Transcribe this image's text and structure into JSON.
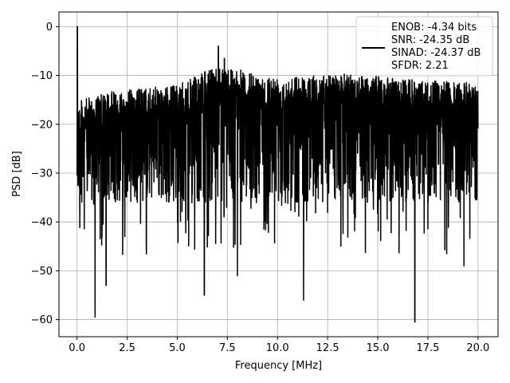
{
  "chart_data": {
    "type": "line",
    "title": "",
    "xlabel": "Frequency [MHz]",
    "ylabel": "PSD [dB]",
    "xlim": [
      -0.9,
      21.0
    ],
    "ylim": [
      -63.5,
      3.0
    ],
    "xticks": [
      0.0,
      2.5,
      5.0,
      7.5,
      10.0,
      12.5,
      15.0,
      17.5,
      20.0
    ],
    "xtick_labels": [
      "0.0",
      "2.5",
      "5.0",
      "7.5",
      "10.0",
      "12.5",
      "15.0",
      "17.5",
      "20.0"
    ],
    "yticks": [
      0,
      -10,
      -20,
      -30,
      -40,
      -50,
      -60
    ],
    "ytick_labels": [
      "0",
      "−10",
      "−20",
      "−30",
      "−40",
      "−50",
      "−60"
    ],
    "grid": true,
    "legend_position": "top-right",
    "legend_lines": [
      "ENOB: -4.34 bits",
      "SNR: -24.35 dB",
      "SINAD: -24.37 dB",
      "SFDR: 2.21"
    ],
    "series": [
      {
        "color": "#000000",
        "x_range": [
          0.0,
          20.0
        ],
        "peaks": [
          {
            "x": 0.02,
            "y": 0.0
          },
          {
            "x": 7.05,
            "y": -4.0
          },
          {
            "x": 7.35,
            "y": -6.5
          }
        ],
        "upper_envelope": [
          {
            "x": 0.2,
            "y": -15
          },
          {
            "x": 2.0,
            "y": -13
          },
          {
            "x": 5.0,
            "y": -12
          },
          {
            "x": 7.0,
            "y": -8
          },
          {
            "x": 7.5,
            "y": -8
          },
          {
            "x": 9.0,
            "y": -10
          },
          {
            "x": 12.0,
            "y": -10
          },
          {
            "x": 14.0,
            "y": -9.5
          },
          {
            "x": 17.0,
            "y": -11
          },
          {
            "x": 20.0,
            "y": -11.5
          }
        ],
        "dense_band": [
          -36,
          -14
        ],
        "notable_minima": [
          {
            "x": 0.9,
            "y": -59.5
          },
          {
            "x": 1.45,
            "y": -53
          },
          {
            "x": 6.35,
            "y": -55
          },
          {
            "x": 8.0,
            "y": -51
          },
          {
            "x": 11.3,
            "y": -56
          },
          {
            "x": 16.85,
            "y": -60.5
          },
          {
            "x": 19.3,
            "y": -49
          }
        ]
      }
    ]
  }
}
